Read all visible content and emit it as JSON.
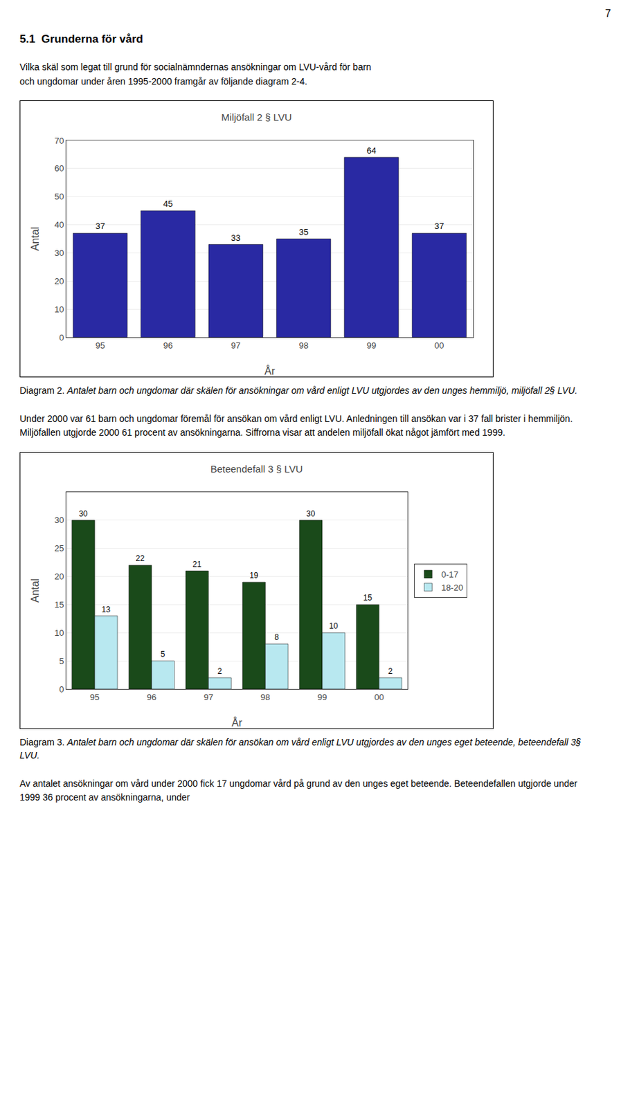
{
  "chart_data": [
    {
      "type": "bar",
      "title": "Miljöfall 2 § LVU",
      "xlabel": "År",
      "ylabel": "Antal",
      "categories": [
        "95",
        "96",
        "97",
        "98",
        "99",
        "00"
      ],
      "values": [
        37,
        45,
        33,
        35,
        64,
        37
      ],
      "color": "#2929A3",
      "ylim": [
        0,
        70
      ],
      "yticks": [
        0,
        10,
        20,
        30,
        40,
        50,
        60,
        70
      ],
      "grid": true,
      "data_labels": true,
      "annotations": [
        "7",
        "5.1  Grunderna för vård",
        "Vilka skäl som legat till grund för socialnämndernas ansökningar om LVU-vård för barn\noch ungdomar under åren 1995-2000 framgår av följande diagram 2-4.",
        "Diagram 2. ",
        "Antalet barn och ungdomar där skälen för ansökningar om vård enligt LVU utgjordes av den unges hemmiljö, miljöfall 2§ LVU."
      ]
    },
    {
      "type": "bar",
      "title": "Beteendefall 3 § LVU",
      "xlabel": "År",
      "ylabel": "Antal",
      "categories": [
        "95",
        "96",
        "97",
        "98",
        "99",
        "00"
      ],
      "series": [
        {
          "name": "0-17",
          "color": "#1A4A1A",
          "values": [
            30,
            22,
            21,
            19,
            30,
            15
          ]
        },
        {
          "name": "18-20",
          "color": "#B8E8F0",
          "values": [
            13,
            5,
            2,
            8,
            10,
            2
          ]
        }
      ],
      "ylim": [
        0,
        35
      ],
      "yticks": [
        0,
        5,
        10,
        15,
        20,
        25,
        30
      ],
      "grid": true,
      "data_labels": true,
      "legend": "right",
      "annotations": [
        "Under 2000 var 61 barn och ungdomar föremål för ansökan om vård enligt LVU. Anledningen till ansökan var i 37 fall brister i hemmiljön. Miljöfallen utgjorde 2000 61 procent av ansökningarna. Siffrorna visar att andelen miljöfall ökat något jämfört med 1999.",
        "Diagram 3. ",
        "Antalet barn och ungdomar där skälen för ansökan om vård enligt LVU utgjordes av den unges eget beteende, beteendefall 3§ LVU.",
        "Av antalet ansökningar om vård under 2000 fick 17 ungdomar vård på grund av den unges eget beteende. Beteendefallen utgjorde under 1999 36 procent av ansökningarna, under"
      ]
    }
  ]
}
